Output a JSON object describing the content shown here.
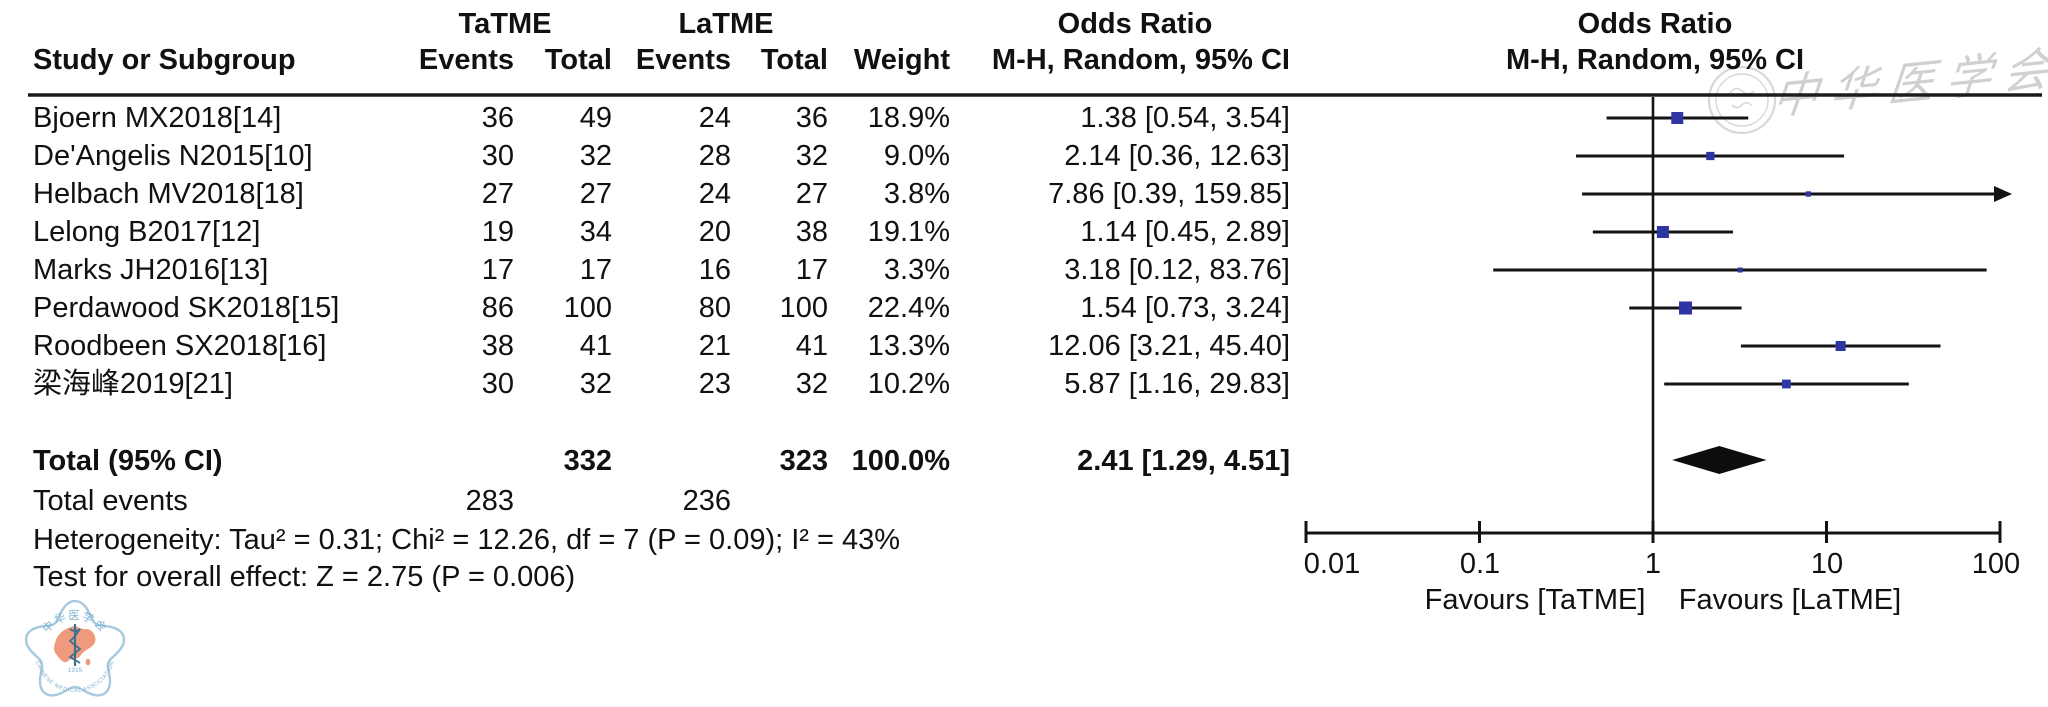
{
  "header": {
    "group1": "TaTME",
    "group2": "LaTME",
    "col_study": "Study or Subgroup",
    "col_events": "Events",
    "col_total": "Total",
    "col_weight": "Weight",
    "or_title": "Odds Ratio",
    "or_subtitle": "M-H, Random, 95% CI"
  },
  "studies": [
    {
      "name": "Bjoern MX2018[14]",
      "e1": "36",
      "t1": "49",
      "e2": "24",
      "t2": "36",
      "weight": "18.9%",
      "or_ci": "1.38 [0.54, 3.54]"
    },
    {
      "name": "De'Angelis N2015[10]",
      "e1": "30",
      "t1": "32",
      "e2": "28",
      "t2": "32",
      "weight": "9.0%",
      "or_ci": "2.14 [0.36, 12.63]"
    },
    {
      "name": "Helbach MV2018[18]",
      "e1": "27",
      "t1": "27",
      "e2": "24",
      "t2": "27",
      "weight": "3.8%",
      "or_ci": "7.86 [0.39, 159.85]"
    },
    {
      "name": "Lelong B2017[12]",
      "e1": "19",
      "t1": "34",
      "e2": "20",
      "t2": "38",
      "weight": "19.1%",
      "or_ci": "1.14 [0.45, 2.89]"
    },
    {
      "name": "Marks JH2016[13]",
      "e1": "17",
      "t1": "17",
      "e2": "16",
      "t2": "17",
      "weight": "3.3%",
      "or_ci": "3.18 [0.12, 83.76]"
    },
    {
      "name": "Perdawood SK2018[15]",
      "e1": "86",
      "t1": "100",
      "e2": "80",
      "t2": "100",
      "weight": "22.4%",
      "or_ci": "1.54 [0.73, 3.24]"
    },
    {
      "name": "Roodbeen SX2018[16]",
      "e1": "38",
      "t1": "41",
      "e2": "21",
      "t2": "41",
      "weight": "13.3%",
      "or_ci": "12.06 [3.21, 45.40]"
    },
    {
      "name": "梁海峰2019[21]",
      "e1": "30",
      "t1": "32",
      "e2": "23",
      "t2": "32",
      "weight": "10.2%",
      "or_ci": "5.87 [1.16, 29.83]"
    }
  ],
  "total_row": {
    "label": "Total (95% CI)",
    "t1": "332",
    "t2": "323",
    "weight": "100.0%",
    "or_ci": "2.41 [1.29, 4.51]"
  },
  "total_events": {
    "label": "Total events",
    "e1": "283",
    "e2": "236"
  },
  "heterogeneity": "Heterogeneity: Tau² = 0.31; Chi² = 12.26, df = 7 (P = 0.09); I² = 43%",
  "overall_effect": "Test for overall effect: Z = 2.75 (P = 0.006)",
  "axis": {
    "tick_labels": [
      "0.01",
      "0.1",
      "1",
      "10",
      "100"
    ],
    "favours_left": "Favours [TaTME]",
    "favours_right": "Favours [LaTME]"
  },
  "watermark": {
    "script_text": "中华医学会",
    "logo_top_text": "中华医学会",
    "logo_bottom_text": "CHINESE MEDICAL ASSOCIATION",
    "logo_year": "1915"
  },
  "colors": {
    "effect_marker": "#2e35a2",
    "ci_line": "#141414",
    "diamond": "#0d0d0d",
    "rule": "#1c1c1c",
    "watermark_gray": "#aaaaaa",
    "logo_blue": "#a6c9e0",
    "logo_text_blue": "#7fb0d0",
    "logo_salmon": "#ef9a7d",
    "logo_staff": "#40708f"
  },
  "chart_data": {
    "type": "scatter",
    "subtype": "forest_plot",
    "title": "Odds Ratio",
    "subtitle": "M-H, Random, 95% CI",
    "x_axis": {
      "scale": "log10",
      "ticks": [
        0.01,
        0.1,
        1,
        10,
        100
      ],
      "range": [
        0.01,
        100
      ],
      "null_line": 1
    },
    "xlabel_left": "Favours [TaTME]",
    "xlabel_right": "Favours [LaTME]",
    "series": [
      {
        "name": "Bjoern MX2018[14]",
        "or": 1.38,
        "ci_low": 0.54,
        "ci_high": 3.54,
        "weight_pct": 18.9
      },
      {
        "name": "De'Angelis N2015[10]",
        "or": 2.14,
        "ci_low": 0.36,
        "ci_high": 12.63,
        "weight_pct": 9.0
      },
      {
        "name": "Helbach MV2018[18]",
        "or": 7.86,
        "ci_low": 0.39,
        "ci_high": 159.85,
        "weight_pct": 3.8
      },
      {
        "name": "Lelong B2017[12]",
        "or": 1.14,
        "ci_low": 0.45,
        "ci_high": 2.89,
        "weight_pct": 19.1
      },
      {
        "name": "Marks JH2016[13]",
        "or": 3.18,
        "ci_low": 0.12,
        "ci_high": 83.76,
        "weight_pct": 3.3
      },
      {
        "name": "Perdawood SK2018[15]",
        "or": 1.54,
        "ci_low": 0.73,
        "ci_high": 3.24,
        "weight_pct": 22.4
      },
      {
        "name": "Roodbeen SX2018[16]",
        "or": 12.06,
        "ci_low": 3.21,
        "ci_high": 45.4,
        "weight_pct": 13.3
      },
      {
        "name": "梁海峰2019[21]",
        "or": 5.87,
        "ci_low": 1.16,
        "ci_high": 29.83,
        "weight_pct": 10.2
      }
    ],
    "pooled": {
      "name": "Total (95% CI)",
      "or": 2.41,
      "ci_low": 1.29,
      "ci_high": 4.51,
      "weight_pct": 100.0
    }
  }
}
